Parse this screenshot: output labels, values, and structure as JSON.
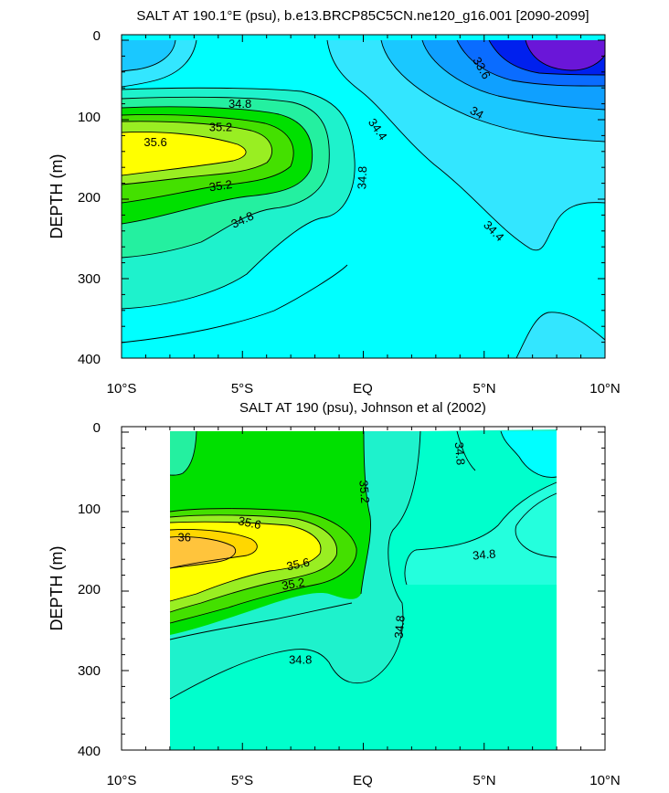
{
  "chart_data": [
    {
      "type": "contour",
      "title": "SALT AT 190.1°E (psu), b.e13.BRCP85C5CN.ne120_g16.001 [2090-2099]",
      "ylabel": "DEPTH (m)",
      "xticks": [
        "10°S",
        "5°S",
        "EQ",
        "5°N",
        "10°N"
      ],
      "xlim": [
        -10,
        10
      ],
      "yticks": [
        "0",
        "100",
        "200",
        "300",
        "400"
      ],
      "ylim": [
        400,
        0
      ],
      "contour_labels": [
        {
          "text": "34.8",
          "x": -5.1,
          "y": 80,
          "angle": 0
        },
        {
          "text": "35.2",
          "x": -5.9,
          "y": 109,
          "angle": 0
        },
        {
          "text": "35.6",
          "x": -8.6,
          "y": 128,
          "angle": 0
        },
        {
          "text": "35.2",
          "x": -5.9,
          "y": 183,
          "angle": -8
        },
        {
          "text": "34.8",
          "x": -5.0,
          "y": 226,
          "angle": -25
        },
        {
          "text": "34.8",
          "x": -0.05,
          "y": 173,
          "angle": -88
        },
        {
          "text": "34.4",
          "x": 0.6,
          "y": 112,
          "angle": 55
        },
        {
          "text": "33.6",
          "x": 4.9,
          "y": 35,
          "angle": 60
        },
        {
          "text": "34",
          "x": 4.7,
          "y": 91,
          "angle": 30
        },
        {
          "text": "34.4",
          "x": 5.4,
          "y": 240,
          "angle": 45
        }
      ]
    },
    {
      "type": "contour",
      "title": "SALT AT 190 (psu), Johnson et al (2002)",
      "ylabel": "DEPTH (m)",
      "xticks": [
        "10°S",
        "5°S",
        "EQ",
        "5°N",
        "10°N"
      ],
      "xlim": [
        -10,
        10
      ],
      "yticks": [
        "0",
        "100",
        "200",
        "300",
        "400"
      ],
      "ylim": [
        400,
        0
      ],
      "data_extent_lon": [
        -8,
        8
      ],
      "contour_labels": [
        {
          "text": "35.2",
          "x": 0.05,
          "y": 75,
          "angle": 85
        },
        {
          "text": "34.8",
          "x": 4.0,
          "y": 27,
          "angle": 85
        },
        {
          "text": "35.6",
          "x": -4.7,
          "y": 114,
          "angle": 12
        },
        {
          "text": "36",
          "x": -7.4,
          "y": 132,
          "angle": 0
        },
        {
          "text": "35.6",
          "x": -2.7,
          "y": 166,
          "angle": -12
        },
        {
          "text": "35.2",
          "x": -2.9,
          "y": 191,
          "angle": -10
        },
        {
          "text": "34.8",
          "x": 5.0,
          "y": 154,
          "angle": -5
        },
        {
          "text": "34.8",
          "x": 1.5,
          "y": 245,
          "angle": -85
        },
        {
          "text": "34.8",
          "x": -2.6,
          "y": 286,
          "angle": 0
        }
      ]
    }
  ]
}
